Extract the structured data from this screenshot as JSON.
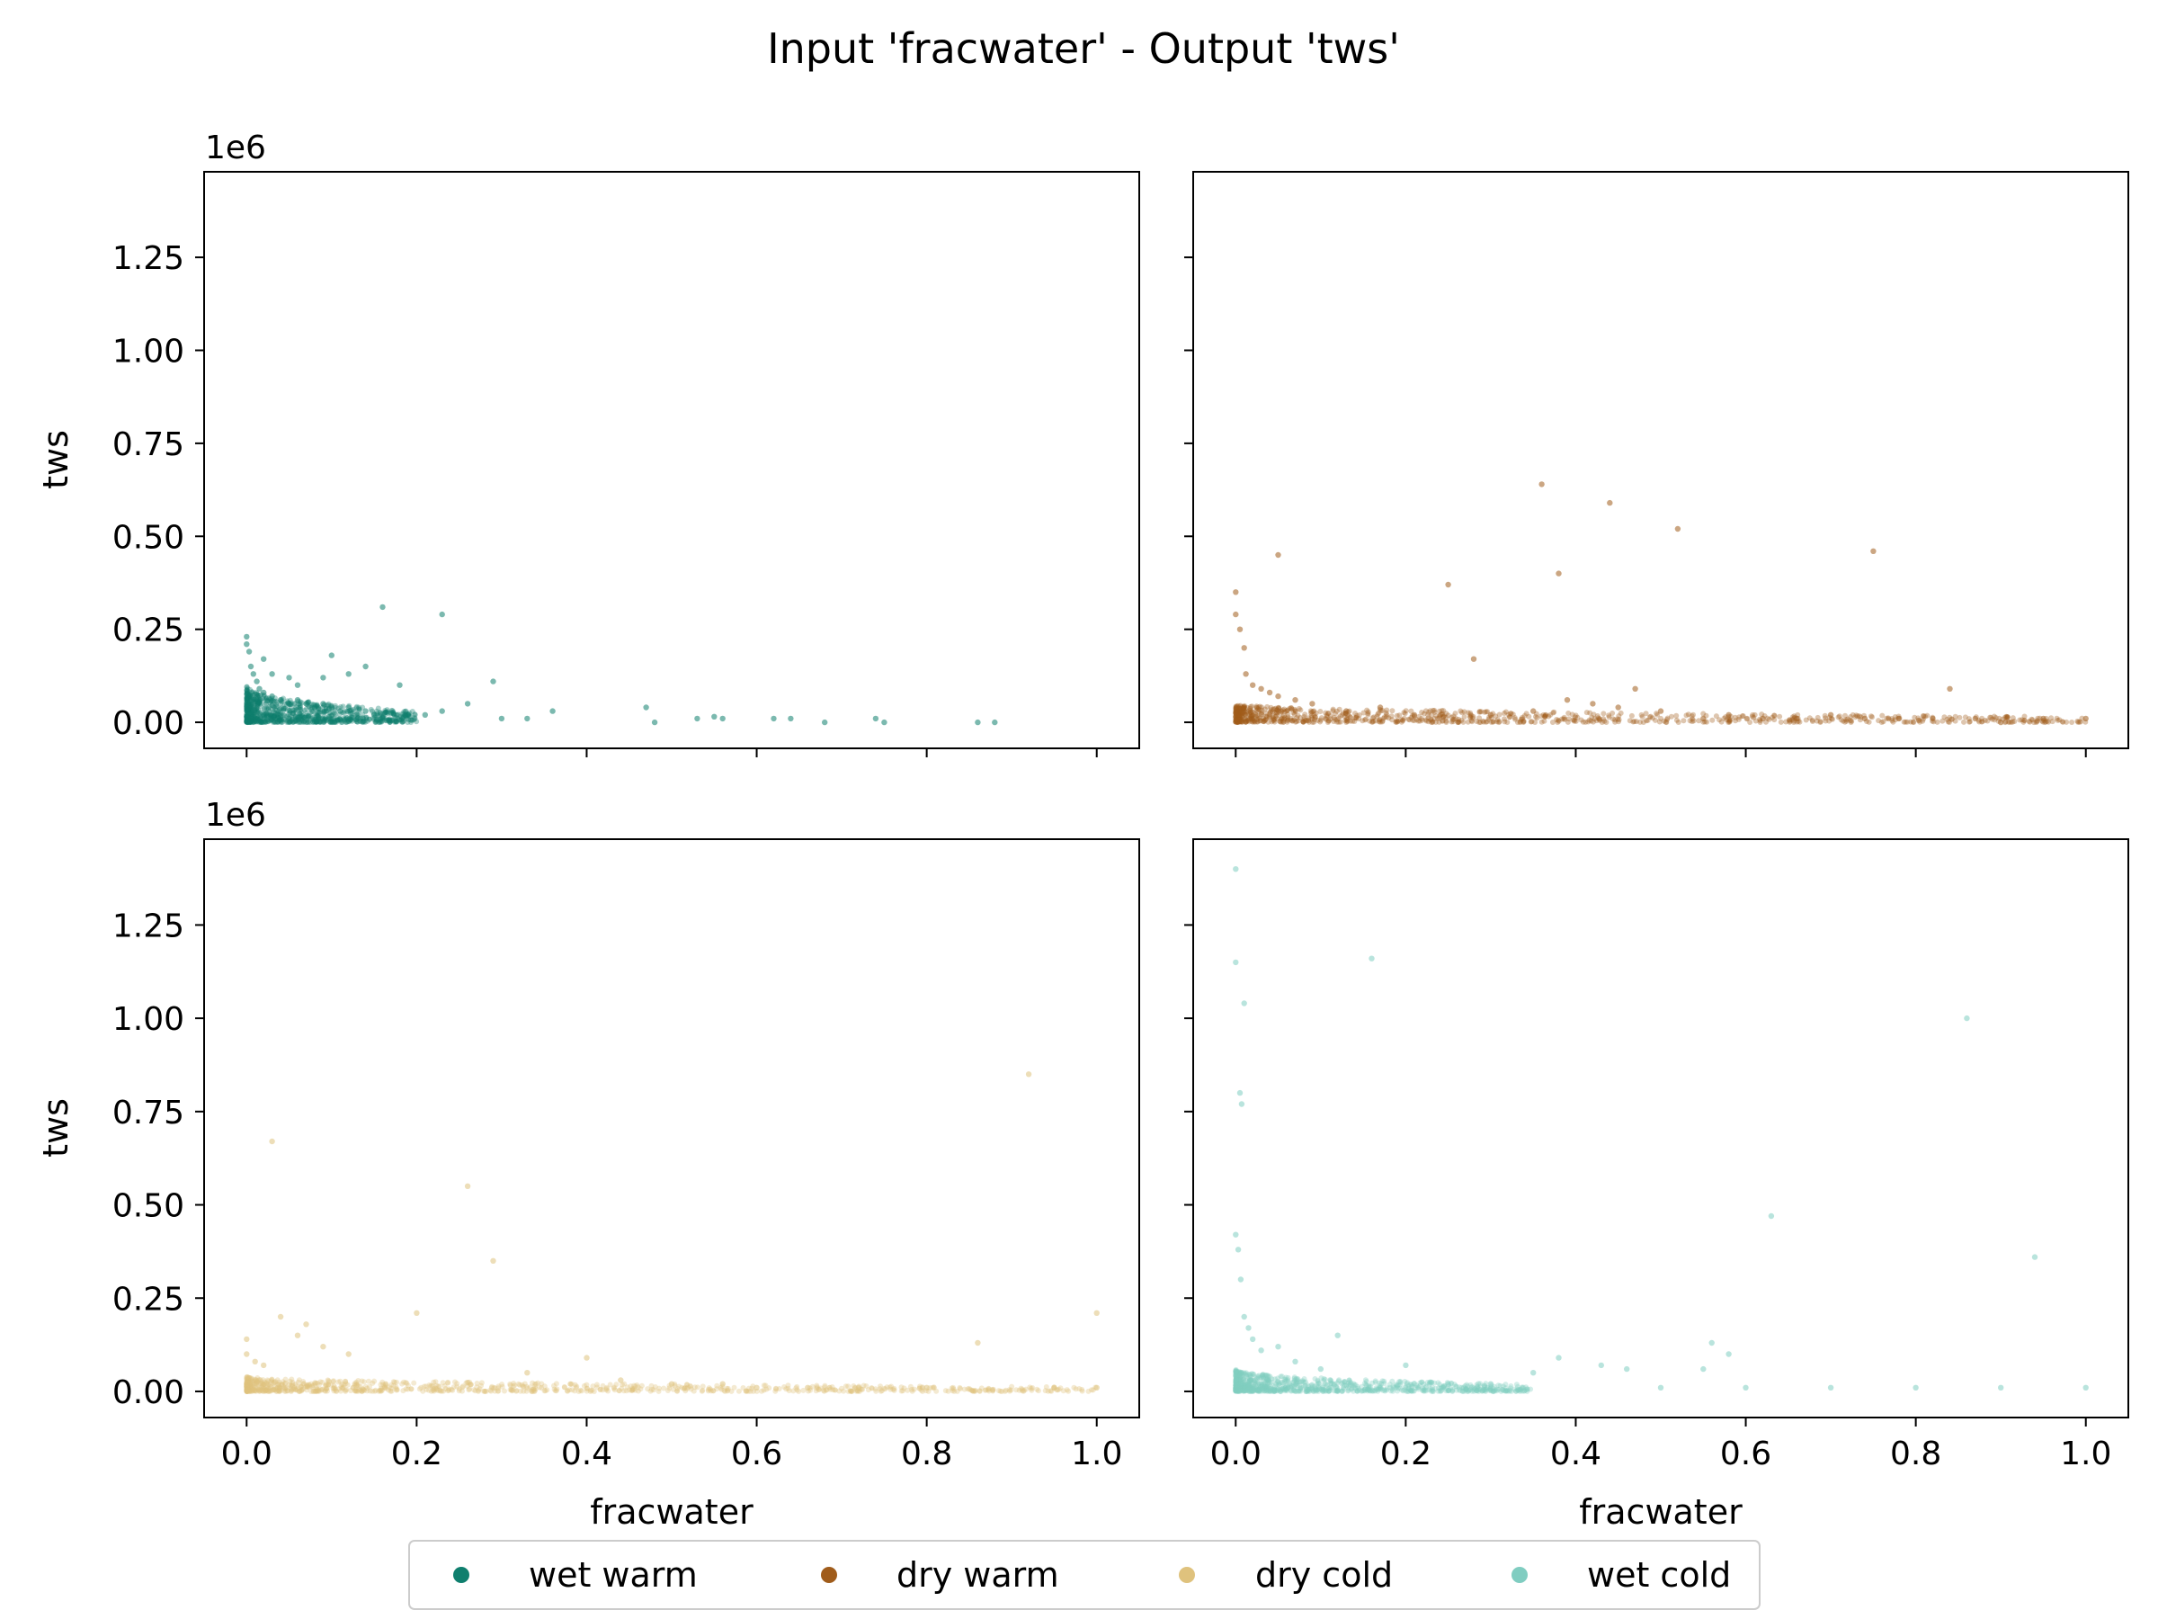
{
  "chart_data": {
    "type": "scatter",
    "title": "Input 'fracwater' - Output 'tws'",
    "xlabel": "fracwater",
    "ylabel": "tws",
    "y_offset_label": "1e6",
    "xlim": [
      -0.05,
      1.05
    ],
    "ylim": [
      -0.07,
      1.48
    ],
    "y_scale_factor": 1000000,
    "xticks": [
      0.0,
      0.2,
      0.4,
      0.6,
      0.8,
      1.0
    ],
    "xtick_labels": [
      "0.0",
      "0.2",
      "0.4",
      "0.6",
      "0.8",
      "1.0"
    ],
    "yticks": [
      0.0,
      0.25,
      0.5,
      0.75,
      1.0,
      1.25
    ],
    "ytick_labels": [
      "0.00",
      "0.25",
      "0.50",
      "0.75",
      "1.00",
      "1.25"
    ],
    "grid": false,
    "legend_position": "bottom-center",
    "legend": [
      {
        "label": "wet warm",
        "color": "#0f7f6e"
      },
      {
        "label": "dry warm",
        "color": "#a05c1b"
      },
      {
        "label": "dry cold",
        "color": "#dfc27d"
      },
      {
        "label": "wet cold",
        "color": "#80cdc1"
      }
    ],
    "panels": [
      {
        "series": "wet warm",
        "color": "#0f7f6e",
        "points": [
          [
            0.0,
            0.23
          ],
          [
            0.0,
            0.21
          ],
          [
            0.003,
            0.19
          ],
          [
            0.005,
            0.15
          ],
          [
            0.008,
            0.13
          ],
          [
            0.012,
            0.11
          ],
          [
            0.015,
            0.09
          ],
          [
            0.02,
            0.08
          ],
          [
            0.03,
            0.07
          ],
          [
            0.04,
            0.06
          ],
          [
            0.05,
            0.05
          ],
          [
            0.06,
            0.06
          ],
          [
            0.07,
            0.05
          ],
          [
            0.08,
            0.04
          ],
          [
            0.09,
            0.05
          ],
          [
            0.1,
            0.04
          ],
          [
            0.11,
            0.03
          ],
          [
            0.12,
            0.04
          ],
          [
            0.14,
            0.03
          ],
          [
            0.15,
            0.02
          ],
          [
            0.17,
            0.025
          ],
          [
            0.19,
            0.02
          ],
          [
            0.21,
            0.02
          ],
          [
            0.23,
            0.03
          ],
          [
            0.02,
            0.17
          ],
          [
            0.03,
            0.13
          ],
          [
            0.05,
            0.12
          ],
          [
            0.06,
            0.1
          ],
          [
            0.09,
            0.12
          ],
          [
            0.1,
            0.18
          ],
          [
            0.12,
            0.13
          ],
          [
            0.14,
            0.15
          ],
          [
            0.18,
            0.1
          ],
          [
            0.16,
            0.31
          ],
          [
            0.23,
            0.29
          ],
          [
            0.29,
            0.11
          ],
          [
            0.26,
            0.05
          ],
          [
            0.3,
            0.01
          ],
          [
            0.33,
            0.01
          ],
          [
            0.36,
            0.03
          ],
          [
            0.47,
            0.04
          ],
          [
            0.48,
            0.0
          ],
          [
            0.53,
            0.01
          ],
          [
            0.55,
            0.015
          ],
          [
            0.56,
            0.01
          ],
          [
            0.62,
            0.01
          ],
          [
            0.64,
            0.01
          ],
          [
            0.68,
            0.0
          ],
          [
            0.74,
            0.01
          ],
          [
            0.75,
            0.0
          ],
          [
            0.86,
            0.0
          ],
          [
            0.88,
            0.0
          ]
        ],
        "dense_region": {
          "x": [
            0.0,
            0.2
          ],
          "y": [
            0.0,
            0.1
          ]
        }
      },
      {
        "series": "dry warm",
        "color": "#a05c1b",
        "points": [
          [
            0.0,
            0.35
          ],
          [
            0.0,
            0.29
          ],
          [
            0.005,
            0.25
          ],
          [
            0.01,
            0.2
          ],
          [
            0.012,
            0.13
          ],
          [
            0.02,
            0.1
          ],
          [
            0.03,
            0.09
          ],
          [
            0.04,
            0.08
          ],
          [
            0.05,
            0.07
          ],
          [
            0.07,
            0.06
          ],
          [
            0.09,
            0.05
          ],
          [
            0.05,
            0.45
          ],
          [
            0.25,
            0.37
          ],
          [
            0.28,
            0.17
          ],
          [
            0.36,
            0.64
          ],
          [
            0.38,
            0.4
          ],
          [
            0.44,
            0.59
          ],
          [
            0.52,
            0.52
          ],
          [
            0.75,
            0.46
          ],
          [
            0.84,
            0.09
          ],
          [
            0.13,
            0.03
          ],
          [
            0.17,
            0.04
          ],
          [
            0.21,
            0.02
          ],
          [
            0.3,
            0.02
          ],
          [
            0.35,
            0.03
          ],
          [
            0.39,
            0.06
          ],
          [
            0.42,
            0.05
          ],
          [
            0.45,
            0.04
          ],
          [
            0.47,
            0.09
          ],
          [
            0.5,
            0.03
          ],
          [
            0.55,
            0.01
          ],
          [
            0.58,
            0.02
          ],
          [
            0.62,
            0.01
          ],
          [
            0.66,
            0.01
          ],
          [
            0.7,
            0.02
          ],
          [
            0.74,
            0.01
          ],
          [
            0.78,
            0.01
          ],
          [
            0.82,
            0.01
          ],
          [
            0.87,
            0.01
          ],
          [
            0.9,
            0.0
          ],
          [
            0.95,
            0.01
          ],
          [
            1.0,
            0.01
          ]
        ],
        "dense_region": {
          "x": [
            0.0,
            1.0
          ],
          "y": [
            0.0,
            0.05
          ]
        }
      },
      {
        "series": "dry cold",
        "color": "#dfc27d",
        "points": [
          [
            0.0,
            0.14
          ],
          [
            0.0,
            0.1
          ],
          [
            0.01,
            0.08
          ],
          [
            0.02,
            0.07
          ],
          [
            0.03,
            0.67
          ],
          [
            0.04,
            0.2
          ],
          [
            0.06,
            0.15
          ],
          [
            0.07,
            0.18
          ],
          [
            0.09,
            0.12
          ],
          [
            0.12,
            0.1
          ],
          [
            0.2,
            0.21
          ],
          [
            0.26,
            0.55
          ],
          [
            0.29,
            0.35
          ],
          [
            0.33,
            0.05
          ],
          [
            0.4,
            0.09
          ],
          [
            0.44,
            0.03
          ],
          [
            0.5,
            0.02
          ],
          [
            0.56,
            0.02
          ],
          [
            0.6,
            0.01
          ],
          [
            0.66,
            0.01
          ],
          [
            0.72,
            0.01
          ],
          [
            0.8,
            0.01
          ],
          [
            0.86,
            0.13
          ],
          [
            0.92,
            0.85
          ],
          [
            0.95,
            0.01
          ],
          [
            1.0,
            0.21
          ],
          [
            1.0,
            0.01
          ]
        ],
        "dense_region": {
          "x": [
            0.0,
            1.0
          ],
          "y": [
            0.0,
            0.04
          ]
        }
      },
      {
        "series": "wet cold",
        "color": "#80cdc1",
        "points": [
          [
            0.0,
            1.4
          ],
          [
            0.0,
            1.15
          ],
          [
            0.005,
            0.8
          ],
          [
            0.007,
            0.77
          ],
          [
            0.01,
            1.04
          ],
          [
            0.0,
            0.42
          ],
          [
            0.003,
            0.38
          ],
          [
            0.006,
            0.3
          ],
          [
            0.01,
            0.2
          ],
          [
            0.015,
            0.17
          ],
          [
            0.02,
            0.14
          ],
          [
            0.03,
            0.11
          ],
          [
            0.05,
            0.12
          ],
          [
            0.07,
            0.08
          ],
          [
            0.1,
            0.06
          ],
          [
            0.12,
            0.15
          ],
          [
            0.16,
            1.16
          ],
          [
            0.2,
            0.07
          ],
          [
            0.35,
            0.05
          ],
          [
            0.38,
            0.09
          ],
          [
            0.43,
            0.07
          ],
          [
            0.46,
            0.06
          ],
          [
            0.55,
            0.06
          ],
          [
            0.56,
            0.13
          ],
          [
            0.58,
            0.1
          ],
          [
            0.63,
            0.47
          ],
          [
            0.86,
            1.0
          ],
          [
            0.94,
            0.36
          ],
          [
            0.25,
            0.02
          ],
          [
            0.3,
            0.02
          ],
          [
            0.5,
            0.01
          ],
          [
            0.6,
            0.01
          ],
          [
            0.7,
            0.01
          ],
          [
            0.8,
            0.01
          ],
          [
            0.9,
            0.01
          ],
          [
            1.0,
            0.01
          ]
        ],
        "dense_region": {
          "x": [
            0.0,
            0.35
          ],
          "y": [
            0.0,
            0.06
          ]
        }
      }
    ]
  }
}
